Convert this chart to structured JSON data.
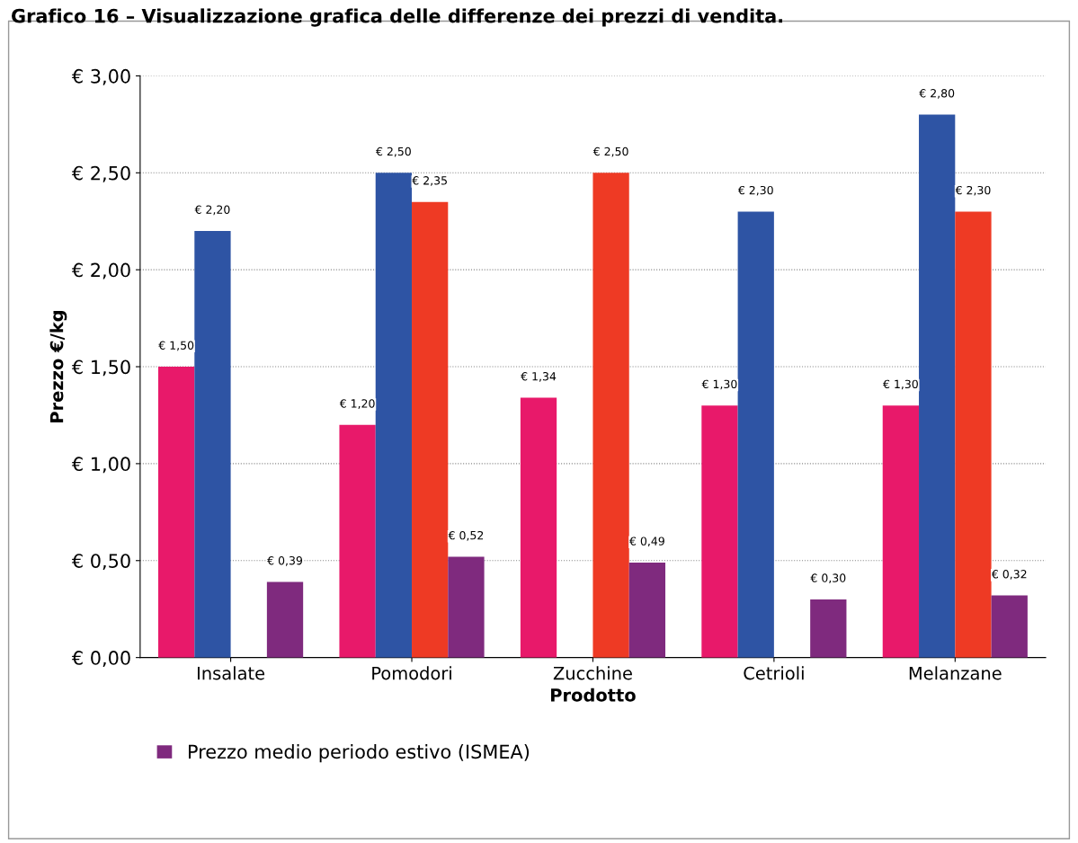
{
  "chart_data": {
    "type": "bar",
    "title": "Grafico 16 – Visualizzazione grafica delle differenze dei prezzi di vendita.",
    "xlabel": "Prodotto",
    "ylabel": "Prezzo €/kg",
    "categories": [
      "Insalate",
      "Pomodori",
      "Zucchine",
      "Cetrioli",
      "Melanzane"
    ],
    "series": [
      {
        "color": "#e8196a",
        "values": [
          1.5,
          1.2,
          1.34,
          1.3,
          1.3
        ],
        "value_labels": [
          "€ 1,50",
          "€ 1,20",
          "€ 1,34",
          "€ 1,30",
          "€ 1,30"
        ]
      },
      {
        "color": "#2e54a4",
        "values": [
          2.2,
          2.5,
          null,
          2.3,
          2.8
        ],
        "value_labels": [
          "€ 2,20",
          "€ 2,50",
          null,
          "€ 2,30",
          "€ 2,80"
        ]
      },
      {
        "color": "#ee3a24",
        "values": [
          null,
          2.35,
          2.5,
          null,
          2.3
        ],
        "value_labels": [
          null,
          "€ 2,35",
          "€ 2,50",
          null,
          "€ 2,30"
        ]
      },
      {
        "name": "Prezzo medio periodo estivo (ISMEA)",
        "color": "#7f2a7e",
        "values": [
          0.39,
          0.52,
          0.49,
          0.3,
          0.32
        ],
        "value_labels": [
          "€ 0,39",
          "€ 0,52",
          "€ 0,49",
          "€ 0,30",
          "€ 0,32"
        ]
      }
    ],
    "ylim": [
      0,
      3
    ],
    "yticks": [
      {
        "value": 0,
        "label": "€ 0,00"
      },
      {
        "value": 0.5,
        "label": "€ 0,50"
      },
      {
        "value": 1,
        "label": "€ 1,00"
      },
      {
        "value": 1.5,
        "label": "€ 1,50"
      },
      {
        "value": 2,
        "label": "€ 2,00"
      },
      {
        "value": 2.5,
        "label": "€ 2,50"
      },
      {
        "value": 3,
        "label": "€ 3,00"
      }
    ],
    "grid": "y",
    "legend": "bottom"
  }
}
